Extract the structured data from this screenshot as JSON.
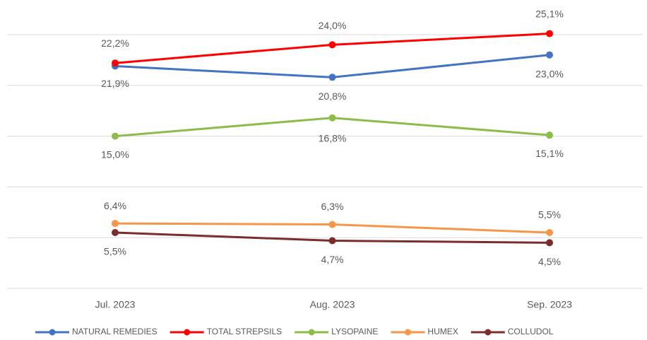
{
  "chart_data": {
    "type": "line",
    "categories": [
      "Jul. 2023",
      "Aug. 2023",
      "Sep. 2023"
    ],
    "series": [
      {
        "name": "NATURAL REMEDIES",
        "color": "#4472c4",
        "values": [
          21.9,
          20.8,
          23.0
        ],
        "value_labels": [
          "21,9%",
          "20,8%",
          "23,0%"
        ]
      },
      {
        "name": "TOTAL STREPSILS",
        "color": "#ff0000",
        "values": [
          22.2,
          24.0,
          25.1
        ],
        "value_labels": [
          "22,2%",
          "24,0%",
          "25,1%"
        ]
      },
      {
        "name": "LYSOPAINE",
        "color": "#8cbd4a",
        "values": [
          15.0,
          16.8,
          15.1
        ],
        "value_labels": [
          "15,0%",
          "16,8%",
          "15,1%"
        ]
      },
      {
        "name": "HUMEX",
        "color": "#f79646",
        "values": [
          6.4,
          6.3,
          5.5
        ],
        "value_labels": [
          "6,4%",
          "6,3%",
          "5,5%"
        ]
      },
      {
        "name": "COLLUDOL",
        "color": "#7b2c2c",
        "values": [
          5.5,
          4.7,
          4.5
        ],
        "value_labels": [
          "5,5%",
          "4,7%",
          "4,5%"
        ]
      }
    ],
    "ylim": [
      0,
      25
    ],
    "yticks": [
      0,
      5,
      10,
      15,
      20,
      25
    ],
    "grid": true,
    "legend": "bottom"
  }
}
